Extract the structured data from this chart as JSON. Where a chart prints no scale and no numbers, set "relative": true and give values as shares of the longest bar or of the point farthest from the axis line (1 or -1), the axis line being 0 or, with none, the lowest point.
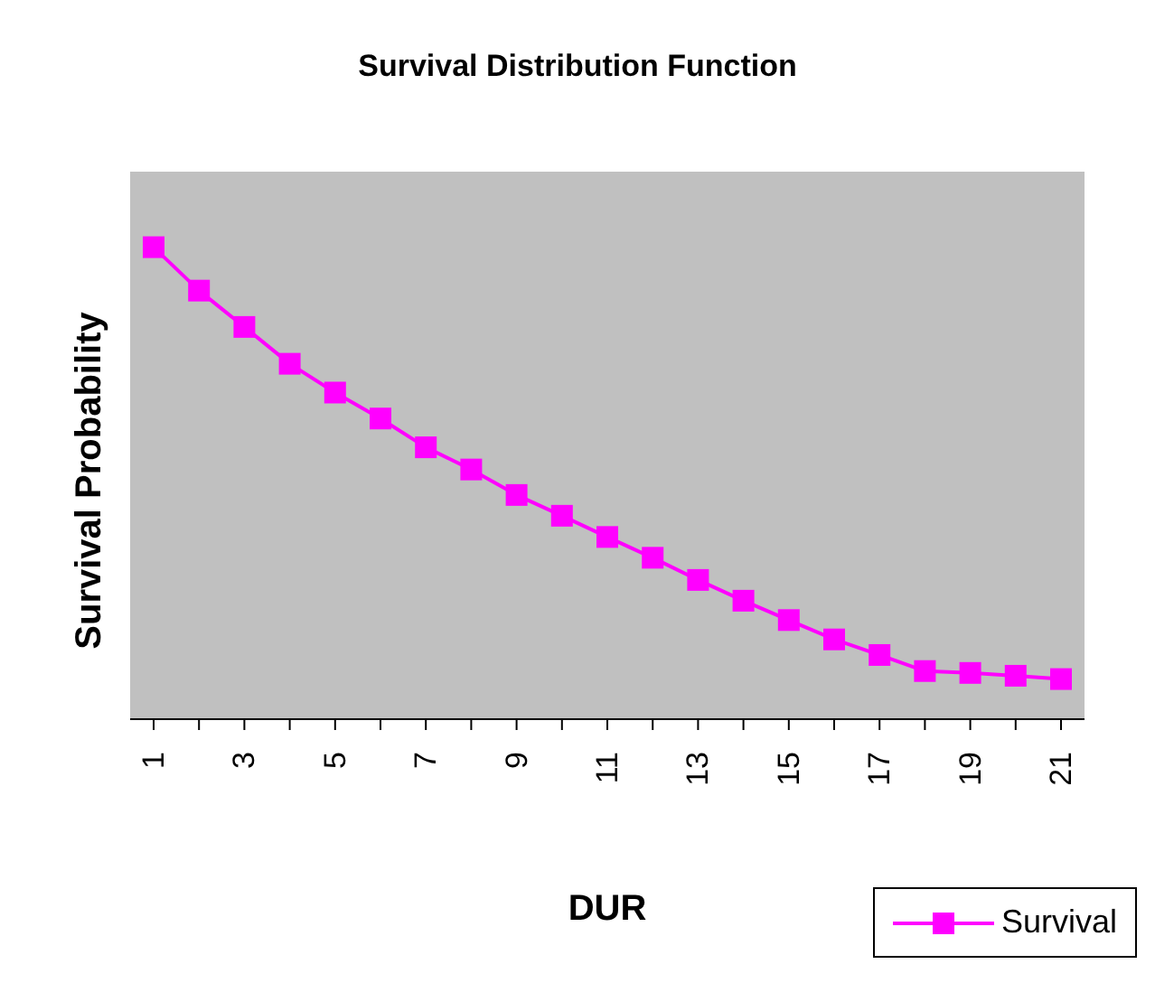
{
  "chart_data": {
    "type": "line",
    "title": "Survival Distribution Function",
    "xlabel": "DUR",
    "ylabel": "Survival Probability",
    "relative": true,
    "categories": [
      "1",
      null,
      "3",
      null,
      "5",
      null,
      "7",
      null,
      "9",
      null,
      "11",
      null,
      "13",
      null,
      "15",
      null,
      "17",
      null,
      "19",
      null,
      "21"
    ],
    "series": [
      {
        "name": "Survival",
        "color": "#ff00ff",
        "values": [
          1,
          0.908,
          0.831,
          0.753,
          0.692,
          0.637,
          0.576,
          0.529,
          0.475,
          0.431,
          0.386,
          0.342,
          0.295,
          0.251,
          0.21,
          0.169,
          0.136,
          0.102,
          0.098,
          0.092,
          0.085
        ]
      }
    ],
    "marker": "square",
    "legend": "bottom right",
    "grid": false
  }
}
